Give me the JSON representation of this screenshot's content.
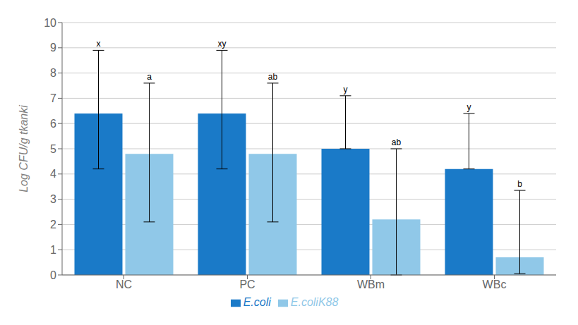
{
  "chart_data": {
    "type": "bar",
    "categories": [
      "NC",
      "PC",
      "WBm",
      "WBc"
    ],
    "ylabel": "Log CFU/g tkanki",
    "ylim": [
      0,
      10
    ],
    "yticks": [
      0,
      1,
      2,
      3,
      4,
      5,
      6,
      7,
      8,
      9,
      10
    ],
    "grid": true,
    "legend": "bottom",
    "series": [
      {
        "name": "E.coli",
        "color": "#1A7AC8",
        "values": [
          6.4,
          6.4,
          5.0,
          4.2
        ],
        "err_low": [
          2.2,
          2.2,
          0.0,
          0.0
        ],
        "err_high": [
          2.5,
          2.5,
          2.1,
          2.2
        ],
        "annotations": [
          "x",
          "xy",
          "y",
          "y"
        ]
      },
      {
        "name": "E.coliK88",
        "color": "#90C8E8",
        "values": [
          4.8,
          4.8,
          2.2,
          0.7
        ],
        "err_low": [
          2.7,
          2.7,
          2.2,
          0.65
        ],
        "err_high": [
          2.8,
          2.8,
          2.8,
          2.65
        ],
        "annotations": [
          "a",
          "ab",
          "ab",
          "b"
        ]
      }
    ]
  }
}
